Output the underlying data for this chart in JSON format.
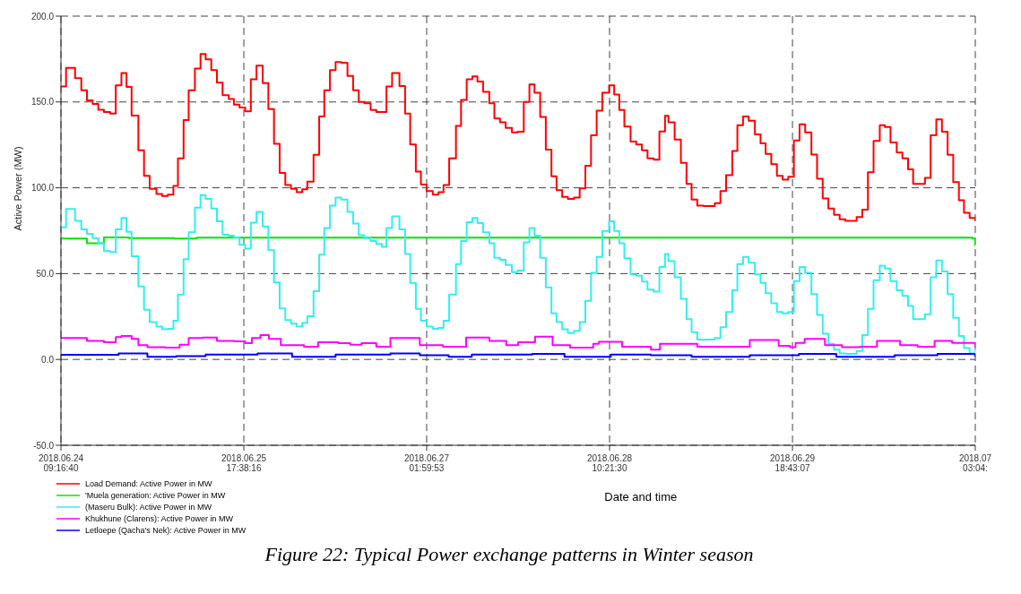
{
  "chart_data": {
    "type": "step",
    "ylabel": "Active Power (MW)",
    "xlabel": "Date and time",
    "annotations": [
      "Figure 22: Typical Power exchange patterns in Winter season"
    ],
    "xlim": [
      "2018-06-24T09:16",
      "2018-07-01T03:04"
    ],
    "xticks": [
      {
        "value": "2018-06-24T09:16",
        "label": "2018.06.24\n09:16:40"
      },
      {
        "value": "2018-06-25T17:38",
        "label": "2018.06.25\n17:38:16"
      },
      {
        "value": "2018-06-27T01:59",
        "label": "2018.06.27\n01:59:53"
      },
      {
        "value": "2018-06-28T10:21",
        "label": "2018.06.28\n10:21:30"
      },
      {
        "value": "2018-06-29T18:43",
        "label": "2018.06.29\n18:43:07"
      },
      {
        "value": "2018-07-01T03:04",
        "label": "2018.07\n03:04:"
      }
    ],
    "ylim": [
      -50,
      200
    ],
    "yticks": [
      {
        "value": -50,
        "label": "-50.0"
      },
      {
        "value": 0,
        "label": "0.0"
      },
      {
        "value": 50,
        "label": "50.0"
      },
      {
        "value": 100,
        "label": "100.0"
      },
      {
        "value": 150,
        "label": "150.0"
      },
      {
        "value": 200,
        "label": "200.0"
      }
    ],
    "grid": true,
    "legend": "bottom left",
    "series": [
      {
        "name": "Load Demand: Active Power in MW",
        "color": "#ff0000",
        "x": [
          "2018-06-24T09:16",
          "2018-06-24T10:10",
          "2018-06-24T11:46",
          "2018-06-24T12:52",
          "2018-06-24T13:52",
          "2018-06-24T14:52",
          "2018-06-24T15:52",
          "2018-06-24T16:52",
          "2018-06-24T17:58",
          "2018-06-24T18:58",
          "2018-06-24T19:58",
          "2018-06-24T20:52",
          "2018-06-24T21:46",
          "2018-06-24T22:58",
          "2018-06-24T23:58",
          "2018-06-25T00:58",
          "2018-06-25T02:10",
          "2018-06-25T03:10",
          "2018-06-25T04:10",
          "2018-06-25T05:10",
          "2018-06-25T05:58",
          "2018-06-25T06:58",
          "2018-06-25T07:52",
          "2018-06-25T08:58",
          "2018-06-25T09:58",
          "2018-06-25T10:52",
          "2018-06-25T11:52",
          "2018-06-25T12:52",
          "2018-06-25T13:52",
          "2018-06-25T14:58",
          "2018-06-25T15:52",
          "2018-06-25T16:52",
          "2018-06-25T17:52",
          "2018-06-25T18:52",
          "2018-06-25T19:52",
          "2018-06-25T20:58",
          "2018-06-25T21:58",
          "2018-06-25T22:58",
          "2018-06-25T23:58",
          "2018-06-26T00:58",
          "2018-06-26T01:58",
          "2018-06-26T02:58",
          "2018-06-26T03:58",
          "2018-06-26T04:52",
          "2018-06-26T05:58",
          "2018-06-26T06:58",
          "2018-06-26T07:52",
          "2018-06-26T08:52",
          "2018-06-26T09:52",
          "2018-06-26T10:52",
          "2018-06-26T11:58",
          "2018-06-26T12:58",
          "2018-06-26T13:58",
          "2018-06-26T14:58",
          "2018-06-26T16:04",
          "2018-06-26T17:04",
          "2018-06-26T18:52",
          "2018-06-26T19:52",
          "2018-06-26T21:10",
          "2018-06-26T22:10",
          "2018-06-26T23:04",
          "2018-06-27T00:04",
          "2018-06-27T00:58",
          "2018-06-27T01:58",
          "2018-06-27T03:04",
          "2018-06-27T04:04",
          "2018-06-27T04:58",
          "2018-06-27T05:58",
          "2018-06-27T07:10",
          "2018-06-27T08:04",
          "2018-06-27T09:04",
          "2018-06-27T10:04",
          "2018-06-27T10:58",
          "2018-06-27T11:58",
          "2018-06-27T13:04",
          "2018-06-27T13:58",
          "2018-06-27T14:58",
          "2018-06-27T15:58",
          "2018-06-27T17:04",
          "2018-06-27T18:04",
          "2018-06-27T19:10",
          "2018-06-27T20:10",
          "2018-06-27T21:04",
          "2018-06-27T22:04",
          "2018-06-27T23:04",
          "2018-06-28T00:04",
          "2018-06-28T00:58",
          "2018-06-28T01:58",
          "2018-06-28T02:58",
          "2018-06-28T04:04",
          "2018-06-28T05:04",
          "2018-06-28T06:04",
          "2018-06-28T07:04",
          "2018-06-28T08:04",
          "2018-06-28T09:04",
          "2018-06-28T10:16",
          "2018-06-28T11:10",
          "2018-06-28T12:04",
          "2018-06-28T12:58",
          "2018-06-28T14:04",
          "2018-06-28T15:04",
          "2018-06-28T16:04",
          "2018-06-28T17:04",
          "2018-06-28T18:10",
          "2018-06-28T19:10",
          "2018-06-28T20:10",
          "2018-06-28T20:46",
          "2018-06-28T21:52",
          "2018-06-28T22:58",
          "2018-06-28T23:58",
          "2018-06-29T00:52",
          "2018-06-29T01:52",
          "2018-06-29T02:58",
          "2018-06-29T03:58",
          "2018-06-29T04:58",
          "2018-06-29T05:58",
          "2018-06-29T06:58",
          "2018-06-29T08:04",
          "2018-06-29T08:58",
          "2018-06-29T09:58",
          "2018-06-29T10:58",
          "2018-06-29T12:04",
          "2018-06-29T13:04",
          "2018-06-29T13:58",
          "2018-06-29T14:58",
          "2018-06-29T15:58",
          "2018-06-29T16:58",
          "2018-06-29T17:58",
          "2018-06-29T18:58",
          "2018-06-29T19:58",
          "2018-06-29T20:58",
          "2018-06-29T22:04",
          "2018-06-29T23:04",
          "2018-06-30T00:04",
          "2018-06-30T01:04",
          "2018-06-30T02:04",
          "2018-06-30T03:04",
          "2018-06-30T04:04",
          "2018-06-30T05:04",
          "2018-06-30T06:04",
          "2018-06-30T07:04",
          "2018-06-30T08:04",
          "2018-06-30T09:04",
          "2018-06-30T10:10",
          "2018-06-30T11:04",
          "2018-06-30T12:04",
          "2018-06-30T13:10",
          "2018-06-30T14:10",
          "2018-06-30T15:10",
          "2018-06-30T16:04",
          "2018-06-30T17:04",
          "2018-06-30T18:10",
          "2018-06-30T19:10",
          "2018-06-30T20:10",
          "2018-06-30T21:10",
          "2018-06-30T22:10",
          "2018-06-30T23:10",
          "2018-07-01T00:10",
          "2018-07-01T01:04",
          "2018-07-01T02:04",
          "2018-07-01T03:04"
        ],
        "values": [
          159,
          169.8,
          163.9,
          156.8,
          150.9,
          148.9,
          145.5,
          144.1,
          143.3,
          159.7,
          166.9,
          158.8,
          142.1,
          121.9,
          107,
          99.4,
          96.4,
          95.2,
          96,
          101.1,
          117.1,
          139.4,
          156.8,
          169.5,
          177.9,
          174.8,
          168.6,
          161.3,
          153.9,
          151.7,
          148.4,
          146.7,
          144.5,
          163.2,
          171.1,
          161,
          145.8,
          125.6,
          108.7,
          101.6,
          99.4,
          97.4,
          99.1,
          103.6,
          119.2,
          141.6,
          156.8,
          168.6,
          173.3,
          172.8,
          165.2,
          156.8,
          150,
          149.2,
          145.3,
          144.1,
          159,
          166.9,
          159.3,
          143.3,
          125.2,
          109.5,
          101.9,
          98.1,
          96,
          97.4,
          101.6,
          117.1,
          136,
          151.2,
          163.2,
          164.9,
          161.9,
          155.9,
          149.2,
          140.4,
          138.2,
          134.9,
          132.3,
          132.7,
          150,
          160.2,
          155.4,
          141.3,
          122.2,
          106.7,
          98.6,
          94.7,
          93.5,
          94.3,
          99.7,
          112.9,
          130.6,
          145,
          155.4,
          159.7,
          154.3,
          145.3,
          135.7,
          126.9,
          125.2,
          121.9,
          117.1,
          116.3,
          132.8,
          141.9,
          138.2,
          128.1,
          114.6,
          102.3,
          93.2,
          89.6,
          89.3,
          89.3,
          91,
          98.1,
          107.3,
          121.4,
          136.5,
          141.6,
          139.1,
          131.1,
          125.9,
          119.7,
          113.8,
          107,
          104.8,
          106.5,
          127.6,
          137,
          132.3,
          119.3,
          105.3,
          93.8,
          87.9,
          84.2,
          81.7,
          80.8,
          80.8,
          82.9,
          87.3,
          109,
          127.3,
          136.5,
          135.4,
          126.4,
          120.5,
          117.1,
          110.7,
          102.3,
          102.3,
          105.8,
          130.6,
          139.9,
          132.7,
          119.2,
          103.3,
          92.7,
          85.4,
          82.5,
          80.8
        ]
      },
      {
        "name": "'Muela generation: Active Power in MW",
        "color": "#00e600",
        "x": [
          "2018-06-24T09:16",
          "2018-06-24T13:52",
          "2018-06-24T16:52",
          "2018-06-24T21:16",
          "2018-06-25T05:16",
          "2018-06-25T09:16",
          "2018-07-01T02:34",
          "2018-07-01T03:04"
        ],
        "values": [
          70.4,
          67.7,
          71.1,
          70.7,
          70.4,
          70.9,
          70.4,
          66
        ]
      },
      {
        "name": "(Maseru Bulk): Active Power in MW",
        "color": "#33eeee",
        "x": [
          "2018-06-24T09:16",
          "2018-06-24T10:10",
          "2018-06-24T11:46",
          "2018-06-24T12:52",
          "2018-06-24T13:52",
          "2018-06-24T14:52",
          "2018-06-24T15:52",
          "2018-06-24T16:52",
          "2018-06-24T17:58",
          "2018-06-24T18:58",
          "2018-06-24T19:58",
          "2018-06-24T20:52",
          "2018-06-24T21:46",
          "2018-06-24T22:58",
          "2018-06-24T23:58",
          "2018-06-25T00:58",
          "2018-06-25T02:10",
          "2018-06-25T03:10",
          "2018-06-25T04:10",
          "2018-06-25T05:10",
          "2018-06-25T05:58",
          "2018-06-25T06:58",
          "2018-06-25T07:52",
          "2018-06-25T08:58",
          "2018-06-25T09:58",
          "2018-06-25T10:52",
          "2018-06-25T11:52",
          "2018-06-25T12:52",
          "2018-06-25T13:52",
          "2018-06-25T14:58",
          "2018-06-25T15:52",
          "2018-06-25T16:52",
          "2018-06-25T17:52",
          "2018-06-25T18:52",
          "2018-06-25T19:52",
          "2018-06-25T20:58",
          "2018-06-25T21:58",
          "2018-06-25T22:58",
          "2018-06-25T23:58",
          "2018-06-26T00:58",
          "2018-06-26T01:58",
          "2018-06-26T02:58",
          "2018-06-26T03:58",
          "2018-06-26T04:52",
          "2018-06-26T05:58",
          "2018-06-26T06:58",
          "2018-06-26T07:52",
          "2018-06-26T08:52",
          "2018-06-26T09:52",
          "2018-06-26T10:52",
          "2018-06-26T11:58",
          "2018-06-26T12:58",
          "2018-06-26T13:58",
          "2018-06-26T14:58",
          "2018-06-26T16:04",
          "2018-06-26T17:04",
          "2018-06-26T18:04",
          "2018-06-26T18:52",
          "2018-06-26T19:52",
          "2018-06-26T21:10",
          "2018-06-26T22:10",
          "2018-06-26T23:04",
          "2018-06-27T00:04",
          "2018-06-27T00:58",
          "2018-06-27T01:58",
          "2018-06-27T03:04",
          "2018-06-27T04:04",
          "2018-06-27T04:58",
          "2018-06-27T05:58",
          "2018-06-27T07:10",
          "2018-06-27T08:04",
          "2018-06-27T09:04",
          "2018-06-27T10:04",
          "2018-06-27T10:58",
          "2018-06-27T11:58",
          "2018-06-27T13:04",
          "2018-06-27T13:58",
          "2018-06-27T14:58",
          "2018-06-27T15:58",
          "2018-06-27T17:04",
          "2018-06-27T18:04",
          "2018-06-27T19:10",
          "2018-06-27T20:10",
          "2018-06-27T21:04",
          "2018-06-27T22:04",
          "2018-06-27T23:04",
          "2018-06-28T00:04",
          "2018-06-28T00:58",
          "2018-06-28T01:58",
          "2018-06-28T02:58",
          "2018-06-28T04:04",
          "2018-06-28T05:04",
          "2018-06-28T06:04",
          "2018-06-28T07:04",
          "2018-06-28T08:04",
          "2018-06-28T09:04",
          "2018-06-28T10:16",
          "2018-06-28T11:10",
          "2018-06-28T12:04",
          "2018-06-28T12:58",
          "2018-06-28T14:04",
          "2018-06-28T15:04",
          "2018-06-28T16:04",
          "2018-06-28T17:04",
          "2018-06-28T18:10",
          "2018-06-28T19:10",
          "2018-06-28T20:10",
          "2018-06-28T20:46",
          "2018-06-28T21:52",
          "2018-06-28T22:58",
          "2018-06-28T23:58",
          "2018-06-29T00:52",
          "2018-06-29T01:52",
          "2018-06-29T02:58",
          "2018-06-29T03:58",
          "2018-06-29T04:58",
          "2018-06-29T05:58",
          "2018-06-29T06:58",
          "2018-06-29T08:04",
          "2018-06-29T08:58",
          "2018-06-29T09:58",
          "2018-06-29T10:58",
          "2018-06-29T12:04",
          "2018-06-29T13:04",
          "2018-06-29T13:58",
          "2018-06-29T14:58",
          "2018-06-29T15:58",
          "2018-06-29T16:58",
          "2018-06-29T17:58",
          "2018-06-29T18:58",
          "2018-06-29T19:58",
          "2018-06-29T20:58",
          "2018-06-29T22:04",
          "2018-06-29T23:04",
          "2018-06-30T00:04",
          "2018-06-30T01:04",
          "2018-06-30T02:04",
          "2018-06-30T03:04",
          "2018-06-30T04:04",
          "2018-06-30T05:04",
          "2018-06-30T06:04",
          "2018-06-30T07:04",
          "2018-06-30T08:04",
          "2018-06-30T09:04",
          "2018-06-30T10:10",
          "2018-06-30T11:04",
          "2018-06-30T12:04",
          "2018-06-30T13:10",
          "2018-06-30T14:10",
          "2018-06-30T15:10",
          "2018-06-30T16:04",
          "2018-06-30T17:04",
          "2018-06-30T18:10",
          "2018-06-30T19:10",
          "2018-06-30T20:10",
          "2018-06-30T21:10",
          "2018-06-30T22:10",
          "2018-06-30T23:10",
          "2018-07-01T00:10",
          "2018-07-01T01:04",
          "2018-07-01T02:04",
          "2018-07-01T03:04"
        ],
        "values": [
          77,
          87.6,
          80.8,
          75.8,
          73.2,
          70.7,
          67.7,
          63.1,
          62.6,
          75.8,
          82.5,
          74.4,
          60.1,
          42.5,
          28.9,
          21.8,
          19.2,
          17.6,
          17.9,
          22.6,
          37.8,
          58.4,
          74.1,
          88.4,
          95.7,
          93.5,
          87.9,
          80.5,
          72.7,
          72.1,
          71.1,
          66.8,
          64.5,
          79.7,
          85.9,
          77.5,
          63.6,
          44.9,
          29.7,
          23,
          20.9,
          19.2,
          21.3,
          25.1,
          39.8,
          61.1,
          76.6,
          89.6,
          94.3,
          93.2,
          85.9,
          79.2,
          72.4,
          70.7,
          69,
          67.3,
          65.6,
          76.6,
          83.4,
          75.8,
          61.4,
          44.6,
          29.4,
          22.6,
          19.2,
          17.9,
          18.4,
          22.6,
          37.8,
          55.5,
          69,
          80,
          82.5,
          79.5,
          74.1,
          67.7,
          59.2,
          58.1,
          55,
          50.8,
          51.8,
          68.2,
          76.6,
          72.1,
          59.2,
          42,
          26.8,
          21.8,
          17.6,
          15.4,
          16.7,
          21.8,
          34.1,
          50.5,
          59.7,
          74.9,
          80.5,
          74.9,
          67.7,
          58.9,
          49.6,
          48.8,
          45.4,
          40.7,
          39.5,
          53.8,
          61.4,
          57.2,
          47.9,
          35.3,
          23.5,
          15.9,
          11.6,
          11.6,
          11.6,
          12.5,
          18.7,
          27.7,
          40.3,
          55.5,
          59.7,
          56.4,
          49.6,
          44.6,
          38.6,
          32.7,
          27.7,
          26.8,
          27.7,
          45.7,
          53.8,
          50.5,
          38.1,
          26,
          15,
          9.1,
          5.7,
          3.5,
          3.2,
          3.2,
          4.9,
          14.2,
          29.4,
          46.2,
          54.7,
          53,
          45.7,
          40.3,
          37,
          31.1,
          23.5,
          23.5,
          26.3,
          47.9,
          57.7,
          51.3,
          38.1,
          24.3,
          13.7,
          6.6,
          3.5,
          6.6
        ]
      },
      {
        "name": "Khukhune (Clarens): Active Power in MW",
        "color": "#ff00ff",
        "x": [
          "2018-06-24T09:16",
          "2018-06-24T13:52",
          "2018-06-24T16:52",
          "2018-06-24T18:58",
          "2018-06-24T19:58",
          "2018-06-24T21:46",
          "2018-06-24T22:58",
          "2018-06-25T00:34",
          "2018-06-25T03:40",
          "2018-06-25T06:16",
          "2018-06-25T07:52",
          "2018-06-25T10:22",
          "2018-06-25T12:52",
          "2018-06-25T15:58",
          "2018-06-25T17:52",
          "2018-06-25T19:04",
          "2018-06-25T20:34",
          "2018-06-25T22:04",
          "2018-06-26T00:10",
          "2018-06-26T04:16",
          "2018-06-26T06:46",
          "2018-06-26T10:22",
          "2018-06-26T12:28",
          "2018-06-26T14:28",
          "2018-06-26T17:04",
          "2018-06-26T19:34",
          "2018-06-26T21:40",
          "2018-06-27T00:46",
          "2018-06-27T04:52",
          "2018-06-27T08:58",
          "2018-06-27T13:04",
          "2018-06-27T16:04",
          "2018-06-27T18:10",
          "2018-06-27T21:10",
          "2018-06-28T00:16",
          "2018-06-28T03:22",
          "2018-06-28T07:28",
          "2018-06-28T08:28",
          "2018-06-28T12:34",
          "2018-06-28T17:40",
          "2018-06-28T19:16",
          "2018-06-28T22:52",
          "2018-06-29T01:52",
          "2018-06-29T05:58",
          "2018-06-29T11:10",
          "2018-06-29T16:16",
          "2018-06-29T18:16",
          "2018-06-29T19:16",
          "2018-06-29T20:52",
          "2018-06-30T00:28",
          "2018-06-30T03:28",
          "2018-06-30T06:34",
          "2018-06-30T09:40",
          "2018-06-30T13:46",
          "2018-06-30T16:52",
          "2018-06-30T19:52",
          "2018-06-30T22:58",
          "2018-07-01T03:04"
        ],
        "values": [
          12.5,
          10.8,
          10,
          13,
          13.7,
          12,
          8.3,
          7.1,
          6.9,
          8.6,
          12.5,
          12.8,
          10.8,
          10.5,
          9.5,
          12.5,
          14.2,
          12,
          8.3,
          7.4,
          10,
          9.5,
          8.6,
          9.5,
          7.4,
          12.5,
          12.5,
          8.3,
          7.4,
          12.8,
          10.8,
          8.3,
          10,
          13.3,
          8.3,
          6.9,
          9.1,
          10.3,
          7.4,
          5.7,
          9.1,
          9.1,
          7.4,
          7.4,
          11.3,
          7.9,
          7.1,
          9.6,
          12,
          8.3,
          7.1,
          7.4,
          10.8,
          8.3,
          7.4,
          10.8,
          9.6,
          6.9
        ]
      },
      {
        "name": "Letloepe (Qacha's Nek): Active Power in MW",
        "color": "#0000ff",
        "x": [
          "2018-06-24T09:16",
          "2018-06-24T19:28",
          "2018-06-25T00:34",
          "2018-06-25T05:40",
          "2018-06-25T10:52",
          "2018-06-25T17:58",
          "2018-06-25T20:04",
          "2018-06-26T02:10",
          "2018-06-26T09:52",
          "2018-06-26T19:34",
          "2018-06-27T00:46",
          "2018-06-27T05:52",
          "2018-06-27T09:58",
          "2018-06-27T20:40",
          "2018-06-28T02:22",
          "2018-06-28T10:34",
          "2018-06-28T17:40",
          "2018-06-29T00:52",
          "2018-06-29T11:10",
          "2018-06-29T18:46",
          "2018-06-29T19:52",
          "2018-06-30T02:28",
          "2018-06-30T12:46",
          "2018-06-30T20:22",
          "2018-07-01T03:04"
        ],
        "values": [
          2.7,
          3.5,
          1.5,
          1.9,
          2.9,
          2.9,
          3.5,
          1.5,
          2.9,
          3.5,
          2.4,
          1.5,
          2.9,
          3.2,
          1.5,
          2.9,
          2.4,
          1.5,
          2.4,
          2.4,
          3.2,
          1.5,
          2.4,
          3.2,
          1.5
        ]
      }
    ]
  }
}
